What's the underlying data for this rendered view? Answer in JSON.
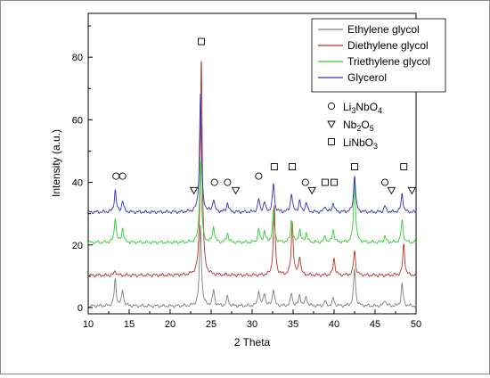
{
  "chart_data": {
    "type": "line",
    "xlabel": "2 Theta",
    "ylabel": "Intensity (a.u.)",
    "xlim": [
      10,
      50
    ],
    "ylim": [
      -2,
      94
    ],
    "xticks": [
      10,
      15,
      20,
      25,
      30,
      35,
      40,
      45,
      50
    ],
    "yticks": [
      0,
      20,
      40,
      60,
      80
    ],
    "grid": false,
    "legend_position": "top-right",
    "series": [
      {
        "name": "Ethylene glycol",
        "color": "#7f7f7f",
        "baseline": 0.5,
        "peaks": [
          [
            13.3,
            8.5
          ],
          [
            14.2,
            5.0
          ],
          [
            23.7,
            26.0
          ],
          [
            25.3,
            5.0
          ],
          [
            27.0,
            3.0
          ],
          [
            30.8,
            5.0
          ],
          [
            31.5,
            4.0
          ],
          [
            32.6,
            5.5
          ],
          [
            34.8,
            4.0
          ],
          [
            35.8,
            3.5
          ],
          [
            36.6,
            3.0
          ],
          [
            38.9,
            1.5
          ],
          [
            39.9,
            2.5
          ],
          [
            42.5,
            12.0
          ],
          [
            46.2,
            2.0
          ],
          [
            48.3,
            7.0
          ]
        ]
      },
      {
        "name": "Diethylene glycol",
        "color": "#b5362a",
        "baseline": 10.3,
        "peaks": [
          [
            13.3,
            1.5
          ],
          [
            23.8,
            70.0
          ],
          [
            32.7,
            22.0
          ],
          [
            34.9,
            17.0
          ],
          [
            35.8,
            6.0
          ],
          [
            40.0,
            5.5
          ],
          [
            42.5,
            8.0
          ],
          [
            48.5,
            10.0
          ]
        ]
      },
      {
        "name": "Triethylene glycol",
        "color": "#33cc33",
        "baseline": 20.8,
        "peaks": [
          [
            13.3,
            8.0
          ],
          [
            14.2,
            4.5
          ],
          [
            23.7,
            27.0
          ],
          [
            25.3,
            5.0
          ],
          [
            27.0,
            3.0
          ],
          [
            30.8,
            4.0
          ],
          [
            31.5,
            3.5
          ],
          [
            32.6,
            10.0
          ],
          [
            34.8,
            7.0
          ],
          [
            35.8,
            4.0
          ],
          [
            36.6,
            3.0
          ],
          [
            38.9,
            2.0
          ],
          [
            39.9,
            4.0
          ],
          [
            42.5,
            20.0
          ],
          [
            46.2,
            2.0
          ],
          [
            48.3,
            7.0
          ]
        ]
      },
      {
        "name": "Glycerol",
        "color": "#3131b8",
        "baseline": 30.5,
        "peaks": [
          [
            13.3,
            7.0
          ],
          [
            14.2,
            3.5
          ],
          [
            23.7,
            38.0
          ],
          [
            25.3,
            4.0
          ],
          [
            27.0,
            3.0
          ],
          [
            30.8,
            4.0
          ],
          [
            31.5,
            3.0
          ],
          [
            32.6,
            9.0
          ],
          [
            34.8,
            6.0
          ],
          [
            35.8,
            3.5
          ],
          [
            36.6,
            3.0
          ],
          [
            38.9,
            2.0
          ],
          [
            39.9,
            3.0
          ],
          [
            42.5,
            12.0
          ],
          [
            46.2,
            2.0
          ],
          [
            48.3,
            6.0
          ]
        ]
      }
    ],
    "phase_legend": [
      {
        "label_main": "Li",
        "sub1": "3",
        "mid": "NbO",
        "sub2": "4",
        "marker": "circle"
      },
      {
        "label_main": "Nb",
        "sub1": "2",
        "mid": "O",
        "sub2": "5",
        "marker": "triangle-down"
      },
      {
        "label_main": "LiNbO",
        "sub1": "3",
        "mid": "",
        "sub2": "",
        "marker": "square"
      }
    ],
    "markers": [
      {
        "type": "square",
        "x": 23.8,
        "y": 85
      },
      {
        "type": "circle",
        "x": 13.4,
        "y": 42
      },
      {
        "type": "circle",
        "x": 14.2,
        "y": 42
      },
      {
        "type": "triangle-down",
        "x": 22.9,
        "y": 37.5
      },
      {
        "type": "circle",
        "x": 25.4,
        "y": 40
      },
      {
        "type": "circle",
        "x": 27.0,
        "y": 40
      },
      {
        "type": "triangle-down",
        "x": 28.0,
        "y": 37.5
      },
      {
        "type": "circle",
        "x": 30.8,
        "y": 42
      },
      {
        "type": "square",
        "x": 32.7,
        "y": 45
      },
      {
        "type": "square",
        "x": 34.9,
        "y": 45
      },
      {
        "type": "circle",
        "x": 36.5,
        "y": 40
      },
      {
        "type": "triangle-down",
        "x": 37.3,
        "y": 37.5
      },
      {
        "type": "square",
        "x": 38.9,
        "y": 40
      },
      {
        "type": "square",
        "x": 40.0,
        "y": 40
      },
      {
        "type": "square",
        "x": 42.5,
        "y": 45
      },
      {
        "type": "circle",
        "x": 46.2,
        "y": 40
      },
      {
        "type": "triangle-down",
        "x": 47.0,
        "y": 37.5
      },
      {
        "type": "square",
        "x": 48.5,
        "y": 45
      },
      {
        "type": "triangle-down",
        "x": 49.5,
        "y": 37.5
      }
    ]
  }
}
